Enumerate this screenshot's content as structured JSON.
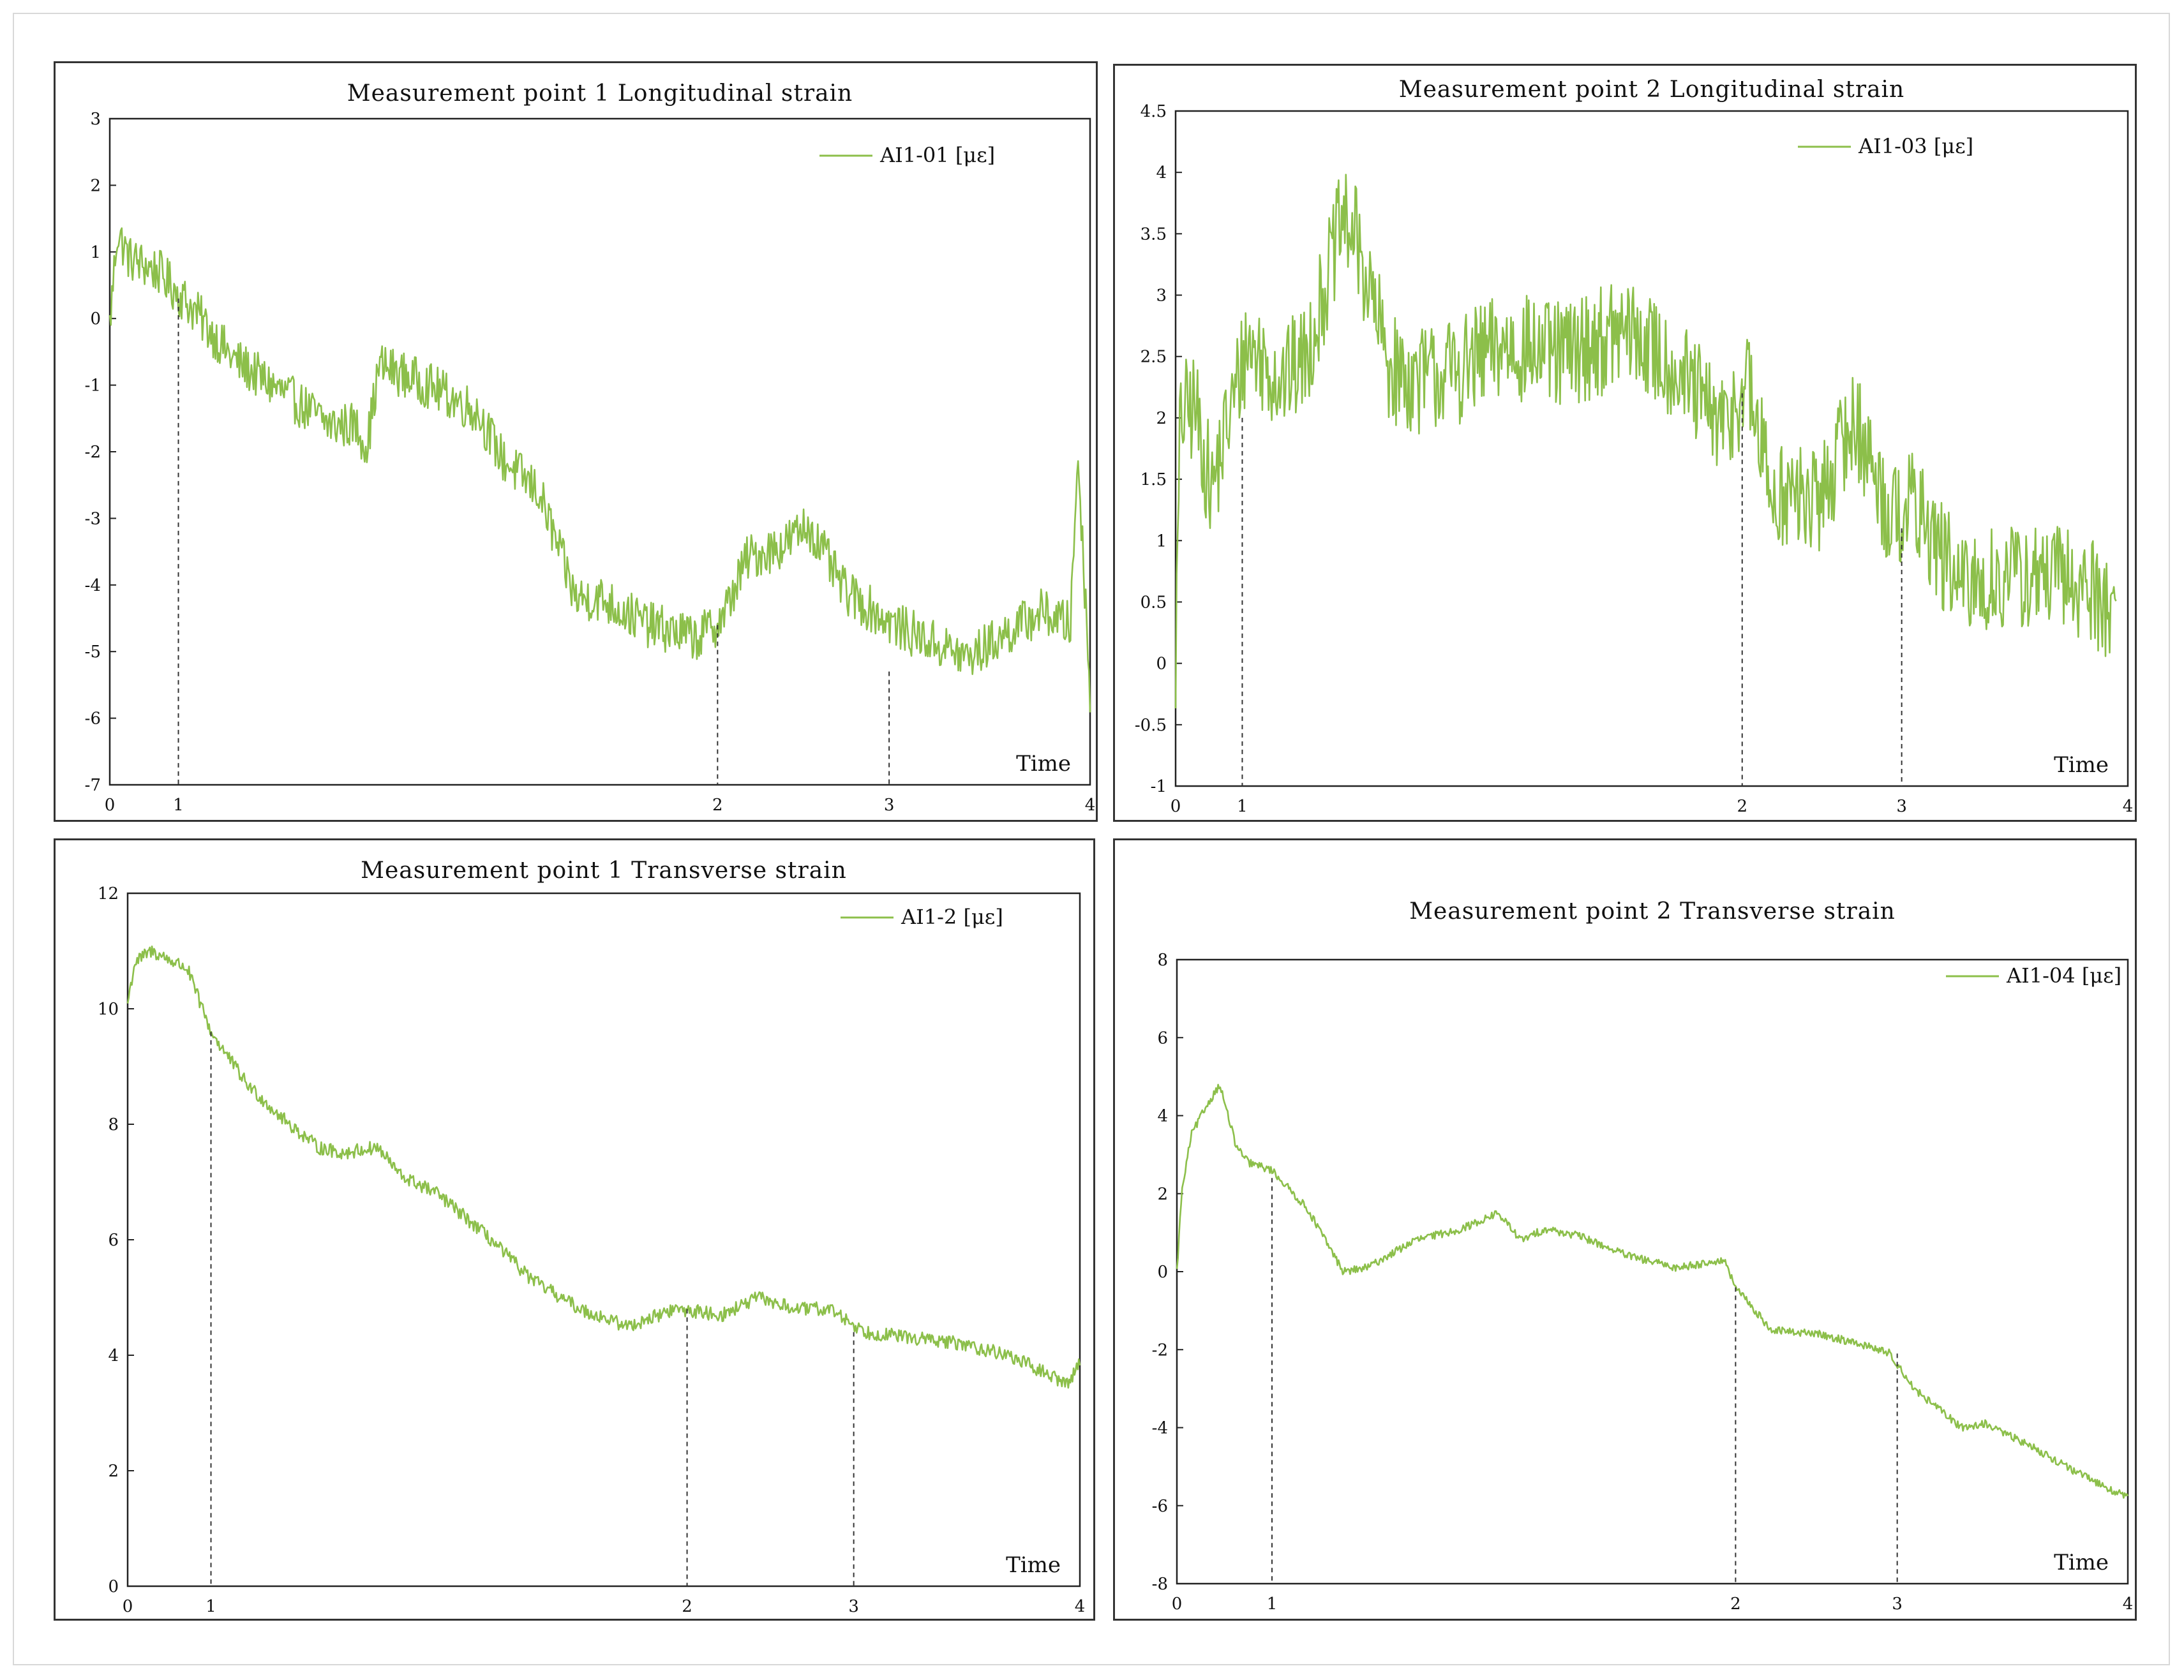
{
  "colors": {
    "series": "#8cbf4a",
    "axis": "#222222",
    "frame": "#333333",
    "marker": "#333333"
  },
  "chart_data": [
    {
      "type": "line",
      "title": "Measurement point 1    Longitudinal strain",
      "xlabel": "Time",
      "ylabel": "",
      "xlim": [
        0,
        4
      ],
      "ylim": [
        -7,
        3
      ],
      "yticks": [
        "3",
        "2",
        "1",
        "0",
        "-1",
        "-2",
        "-3",
        "-4",
        "-5",
        "-6",
        "-7"
      ],
      "xticks": [
        "0",
        "1",
        "2",
        "3",
        "4"
      ],
      "markers": [
        {
          "label": "1",
          "x": 0.28,
          "y": 0.3
        },
        {
          "label": "2",
          "x": 2.48,
          "y": -4.6
        },
        {
          "label": "3",
          "x": 3.18,
          "y": -5.3
        }
      ],
      "legend": "AI1-01 [με]",
      "legend_position": "top-right",
      "noise": 0.35,
      "series": [
        {
          "name": "AI1-01 [με]",
          "x": [
            0,
            0.03,
            0.08,
            0.2,
            0.35,
            0.5,
            0.7,
            0.9,
            1.0,
            1.05,
            1.1,
            1.3,
            1.5,
            1.6,
            1.75,
            1.9,
            2.0,
            2.2,
            2.4,
            2.5,
            2.6,
            2.75,
            2.85,
            3.0,
            3.2,
            3.5,
            3.8,
            3.92,
            3.95,
            4.0
          ],
          "y": [
            -0.1,
            1.3,
            0.9,
            0.7,
            0.1,
            -0.6,
            -1.1,
            -1.6,
            -1.6,
            -1.9,
            -0.7,
            -1.0,
            -1.4,
            -2.1,
            -2.6,
            -4.2,
            -4.2,
            -4.6,
            -4.8,
            -4.5,
            -3.6,
            -3.4,
            -3.1,
            -4.1,
            -4.6,
            -5.1,
            -4.4,
            -4.6,
            -2.0,
            -5.6
          ]
        }
      ]
    },
    {
      "type": "line",
      "title": "Measurement point 2    Longitudinal strain",
      "xlabel": "Time",
      "ylabel": "",
      "xlim": [
        0,
        4
      ],
      "ylim": [
        -1,
        4.5
      ],
      "yticks": [
        "4.5",
        "4",
        "3.5",
        "3",
        "2.5",
        "2",
        "1.5",
        "1",
        "0.5",
        "0",
        "-0.5",
        "-1"
      ],
      "xticks": [
        "0",
        "1",
        "2",
        "3",
        "4"
      ],
      "markers": [
        {
          "label": "1",
          "x": 0.28,
          "y": 2.0
        },
        {
          "label": "2",
          "x": 2.38,
          "y": 2.2
        },
        {
          "label": "3",
          "x": 3.05,
          "y": 1.1
        }
      ],
      "legend": "AI1-03 [με]",
      "legend_position": "top-right",
      "noise": 0.45,
      "series": [
        {
          "name": "AI1-03 [με]",
          "x": [
            0,
            0.02,
            0.08,
            0.15,
            0.3,
            0.45,
            0.55,
            0.7,
            0.75,
            0.9,
            1.0,
            1.2,
            1.4,
            1.6,
            1.9,
            2.1,
            2.3,
            2.4,
            2.5,
            2.7,
            2.85,
            3.0,
            3.1,
            3.3,
            3.5,
            3.7,
            3.85,
            3.95
          ],
          "y": [
            0.0,
            2.0,
            2.1,
            1.4,
            2.6,
            2.3,
            2.5,
            3.6,
            3.5,
            2.4,
            2.3,
            2.4,
            2.6,
            2.5,
            2.7,
            2.4,
            1.9,
            2.3,
            1.4,
            1.3,
            2.0,
            1.2,
            1.3,
            0.6,
            0.7,
            0.7,
            0.6,
            0.4
          ]
        }
      ]
    },
    {
      "type": "line",
      "title": "Measurement point 1   Transverse strain",
      "xlabel": "Time",
      "ylabel": "",
      "xlim": [
        0,
        4
      ],
      "ylim": [
        0,
        12
      ],
      "yticks": [
        "12",
        "10",
        "8",
        "6",
        "4",
        "2",
        "0"
      ],
      "xticks": [
        "0",
        "1",
        "2",
        "3",
        "4"
      ],
      "markers": [
        {
          "label": "1",
          "x": 0.35,
          "y": 9.6
        },
        {
          "label": "2",
          "x": 2.35,
          "y": 4.8
        },
        {
          "label": "3",
          "x": 3.05,
          "y": 4.4
        }
      ],
      "legend": "AI1-2 [με]",
      "legend_position": "top-right",
      "noise": 0.12,
      "series": [
        {
          "name": "AI1-2 [με]",
          "x": [
            0,
            0.03,
            0.1,
            0.25,
            0.35,
            0.5,
            0.65,
            0.8,
            0.9,
            1.05,
            1.15,
            1.3,
            1.5,
            1.7,
            1.9,
            2.1,
            2.3,
            2.5,
            2.65,
            2.8,
            2.95,
            3.1,
            3.3,
            3.5,
            3.7,
            3.9,
            3.95,
            4.0
          ],
          "y": [
            10.1,
            10.8,
            11.0,
            10.7,
            9.6,
            8.7,
            8.1,
            7.6,
            7.5,
            7.6,
            7.1,
            6.8,
            6.1,
            5.3,
            4.8,
            4.5,
            4.8,
            4.7,
            5.0,
            4.8,
            4.8,
            4.4,
            4.3,
            4.2,
            4.0,
            3.6,
            3.5,
            3.9
          ]
        }
      ]
    },
    {
      "type": "line",
      "title": "Measurement point 2   Transverse strain",
      "xlabel": "Time",
      "ylabel": "",
      "xlim": [
        0,
        4
      ],
      "ylim": [
        -8,
        8
      ],
      "yticks": [
        "8",
        "6",
        "4",
        "2",
        "0",
        "-2",
        "-4",
        "-6",
        "-8"
      ],
      "xticks": [
        "0",
        "1",
        "2",
        "3",
        "4"
      ],
      "markers": [
        {
          "label": "1",
          "x": 0.4,
          "y": 2.4
        },
        {
          "label": "2",
          "x": 2.35,
          "y": -0.4
        },
        {
          "label": "3",
          "x": 3.03,
          "y": -2.1
        }
      ],
      "legend": "AI1-04 [με]",
      "legend_position": "top-right",
      "noise": 0.1,
      "series": [
        {
          "name": "AI1-04 [με]",
          "x": [
            0,
            0.02,
            0.06,
            0.12,
            0.18,
            0.25,
            0.3,
            0.4,
            0.55,
            0.7,
            0.8,
            1.0,
            1.2,
            1.35,
            1.45,
            1.55,
            1.7,
            1.9,
            2.1,
            2.3,
            2.35,
            2.5,
            2.7,
            2.9,
            3.0,
            3.1,
            3.3,
            3.4,
            3.6,
            3.8,
            4.0
          ],
          "y": [
            0.0,
            2.0,
            3.5,
            4.2,
            4.8,
            3.2,
            2.8,
            2.6,
            1.6,
            0.0,
            0.1,
            0.8,
            1.1,
            1.5,
            0.8,
            1.1,
            0.9,
            0.4,
            0.1,
            0.3,
            -0.4,
            -1.5,
            -1.6,
            -1.9,
            -2.1,
            -3.0,
            -4.0,
            -3.9,
            -4.5,
            -5.2,
            -5.8
          ]
        }
      ]
    }
  ]
}
